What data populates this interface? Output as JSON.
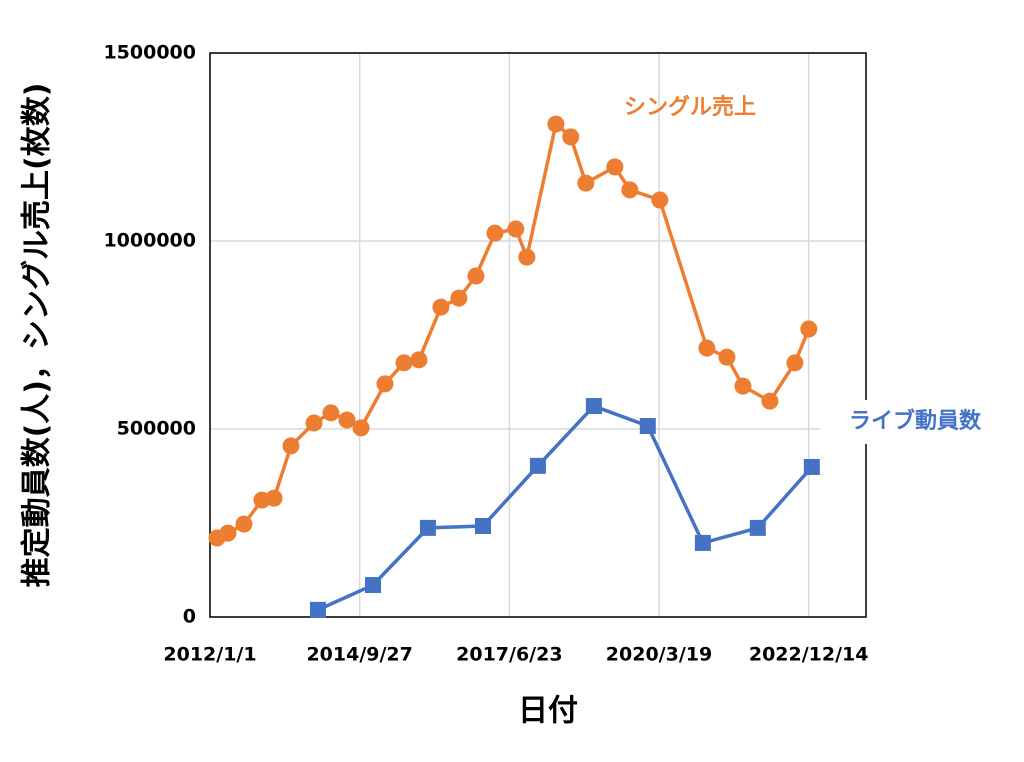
{
  "chart_data": {
    "type": "line",
    "y_label": "推定動員数(人)，シングル売上(枚数)",
    "x_label": "日付",
    "xlim": [
      "2012/1/1",
      "2024/1/1"
    ],
    "xticks": [
      "2012/1/1",
      "2014/9/27",
      "2017/6/23",
      "2020/3/19",
      "2022/12/14"
    ],
    "ylim": [
      0,
      1500000
    ],
    "yticks": [
      0,
      500000,
      1000000,
      1500000
    ],
    "grid": true,
    "series": [
      {
        "name": "シングル売上",
        "color": "#ed7d31",
        "marker": "circle",
        "x": [
          "2012/2/17",
          "2012/4/30",
          "2012/8/15",
          "2012/12/13",
          "2013/3/4",
          "2013/6/25",
          "2013/11/26",
          "2014/3/19",
          "2014/7/4",
          "2014/10/6",
          "2015/3/15",
          "2015/7/20",
          "2015/10/28",
          "2016/3/23",
          "2016/7/21",
          "2016/11/12",
          "2017/3/19",
          "2017/8/5",
          "2017/10/18",
          "2018/4/30",
          "2018/8/7",
          "2018/11/16",
          "2019/5/29",
          "2019/9/6",
          "2020/3/24",
          "2021/2/2",
          "2021/6/16",
          "2021/10/1",
          "2022/3/30",
          "2022/9/13",
          "2022/12/15"
        ],
        "values": [
          210000,
          223000,
          247000,
          311000,
          316000,
          455000,
          516000,
          543000,
          524000,
          503000,
          620000,
          676000,
          684000,
          824000,
          848000,
          907000,
          1021000,
          1032000,
          957000,
          1311000,
          1277000,
          1154000,
          1197000,
          1136000,
          1109000,
          715000,
          691000,
          614000,
          574000,
          676000,
          766000
        ]
      },
      {
        "name": "ライブ動員数",
        "color": "#4472c4",
        "marker": "square",
        "x": [
          "2013/12/22",
          "2014/12/25",
          "2015/12/27",
          "2016/12/29",
          "2017/12/31",
          "2019/1/9",
          "2020/1/4",
          "2021/1/6",
          "2022/1/8",
          "2023/1/4"
        ],
        "values": [
          19000,
          85000,
          237000,
          242000,
          402000,
          561000,
          508000,
          197000,
          237000,
          399000
        ]
      }
    ]
  }
}
